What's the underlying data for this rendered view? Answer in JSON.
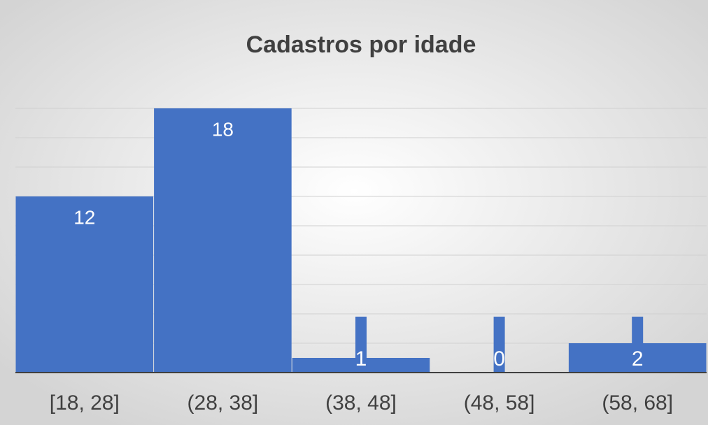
{
  "chart_data": {
    "type": "bar",
    "title": "Cadastros por idade",
    "categories": [
      "[18, 28]",
      "(28, 38]",
      "(38, 48]",
      "(48, 58]",
      "(58, 68]"
    ],
    "values": [
      12,
      18,
      1,
      0,
      2
    ],
    "color": "#4472c4",
    "ylim": [
      0,
      18
    ],
    "yticks": [
      0,
      2,
      4,
      6,
      8,
      10,
      12,
      14,
      16,
      18
    ],
    "grid": true
  }
}
